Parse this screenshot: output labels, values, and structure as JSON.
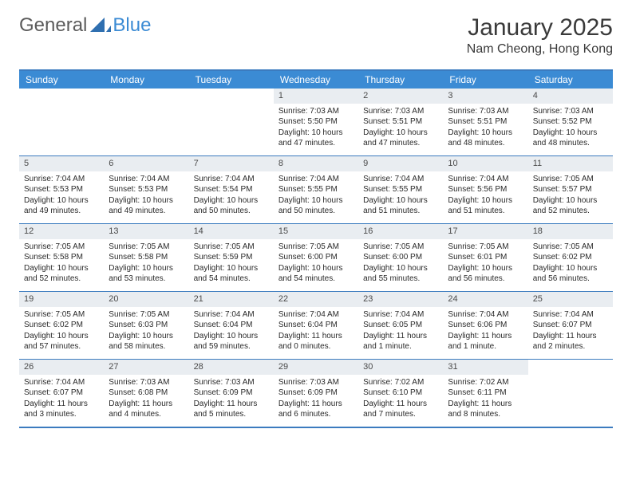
{
  "logo": {
    "text1": "General",
    "text2": "Blue",
    "color1": "#6a6a6a",
    "color2": "#3b8bd4",
    "icon_color": "#2f6fb0"
  },
  "title": "January 2025",
  "location": "Nam Cheong, Hong Kong",
  "colors": {
    "header_bg": "#3b8bd4",
    "border": "#3b7bbf",
    "daynum_bg": "#e9edf1",
    "text": "#2a2a2a"
  },
  "day_headers": [
    "Sunday",
    "Monday",
    "Tuesday",
    "Wednesday",
    "Thursday",
    "Friday",
    "Saturday"
  ],
  "weeks": [
    [
      null,
      null,
      null,
      {
        "n": "1",
        "sr": "7:03 AM",
        "ss": "5:50 PM",
        "dl": "10 hours and 47 minutes."
      },
      {
        "n": "2",
        "sr": "7:03 AM",
        "ss": "5:51 PM",
        "dl": "10 hours and 47 minutes."
      },
      {
        "n": "3",
        "sr": "7:03 AM",
        "ss": "5:51 PM",
        "dl": "10 hours and 48 minutes."
      },
      {
        "n": "4",
        "sr": "7:03 AM",
        "ss": "5:52 PM",
        "dl": "10 hours and 48 minutes."
      }
    ],
    [
      {
        "n": "5",
        "sr": "7:04 AM",
        "ss": "5:53 PM",
        "dl": "10 hours and 49 minutes."
      },
      {
        "n": "6",
        "sr": "7:04 AM",
        "ss": "5:53 PM",
        "dl": "10 hours and 49 minutes."
      },
      {
        "n": "7",
        "sr": "7:04 AM",
        "ss": "5:54 PM",
        "dl": "10 hours and 50 minutes."
      },
      {
        "n": "8",
        "sr": "7:04 AM",
        "ss": "5:55 PM",
        "dl": "10 hours and 50 minutes."
      },
      {
        "n": "9",
        "sr": "7:04 AM",
        "ss": "5:55 PM",
        "dl": "10 hours and 51 minutes."
      },
      {
        "n": "10",
        "sr": "7:04 AM",
        "ss": "5:56 PM",
        "dl": "10 hours and 51 minutes."
      },
      {
        "n": "11",
        "sr": "7:05 AM",
        "ss": "5:57 PM",
        "dl": "10 hours and 52 minutes."
      }
    ],
    [
      {
        "n": "12",
        "sr": "7:05 AM",
        "ss": "5:58 PM",
        "dl": "10 hours and 52 minutes."
      },
      {
        "n": "13",
        "sr": "7:05 AM",
        "ss": "5:58 PM",
        "dl": "10 hours and 53 minutes."
      },
      {
        "n": "14",
        "sr": "7:05 AM",
        "ss": "5:59 PM",
        "dl": "10 hours and 54 minutes."
      },
      {
        "n": "15",
        "sr": "7:05 AM",
        "ss": "6:00 PM",
        "dl": "10 hours and 54 minutes."
      },
      {
        "n": "16",
        "sr": "7:05 AM",
        "ss": "6:00 PM",
        "dl": "10 hours and 55 minutes."
      },
      {
        "n": "17",
        "sr": "7:05 AM",
        "ss": "6:01 PM",
        "dl": "10 hours and 56 minutes."
      },
      {
        "n": "18",
        "sr": "7:05 AM",
        "ss": "6:02 PM",
        "dl": "10 hours and 56 minutes."
      }
    ],
    [
      {
        "n": "19",
        "sr": "7:05 AM",
        "ss": "6:02 PM",
        "dl": "10 hours and 57 minutes."
      },
      {
        "n": "20",
        "sr": "7:05 AM",
        "ss": "6:03 PM",
        "dl": "10 hours and 58 minutes."
      },
      {
        "n": "21",
        "sr": "7:04 AM",
        "ss": "6:04 PM",
        "dl": "10 hours and 59 minutes."
      },
      {
        "n": "22",
        "sr": "7:04 AM",
        "ss": "6:04 PM",
        "dl": "11 hours and 0 minutes."
      },
      {
        "n": "23",
        "sr": "7:04 AM",
        "ss": "6:05 PM",
        "dl": "11 hours and 1 minute."
      },
      {
        "n": "24",
        "sr": "7:04 AM",
        "ss": "6:06 PM",
        "dl": "11 hours and 1 minute."
      },
      {
        "n": "25",
        "sr": "7:04 AM",
        "ss": "6:07 PM",
        "dl": "11 hours and 2 minutes."
      }
    ],
    [
      {
        "n": "26",
        "sr": "7:04 AM",
        "ss": "6:07 PM",
        "dl": "11 hours and 3 minutes."
      },
      {
        "n": "27",
        "sr": "7:03 AM",
        "ss": "6:08 PM",
        "dl": "11 hours and 4 minutes."
      },
      {
        "n": "28",
        "sr": "7:03 AM",
        "ss": "6:09 PM",
        "dl": "11 hours and 5 minutes."
      },
      {
        "n": "29",
        "sr": "7:03 AM",
        "ss": "6:09 PM",
        "dl": "11 hours and 6 minutes."
      },
      {
        "n": "30",
        "sr": "7:02 AM",
        "ss": "6:10 PM",
        "dl": "11 hours and 7 minutes."
      },
      {
        "n": "31",
        "sr": "7:02 AM",
        "ss": "6:11 PM",
        "dl": "11 hours and 8 minutes."
      },
      null
    ]
  ],
  "labels": {
    "sunrise": "Sunrise: ",
    "sunset": "Sunset: ",
    "daylight": "Daylight: "
  }
}
